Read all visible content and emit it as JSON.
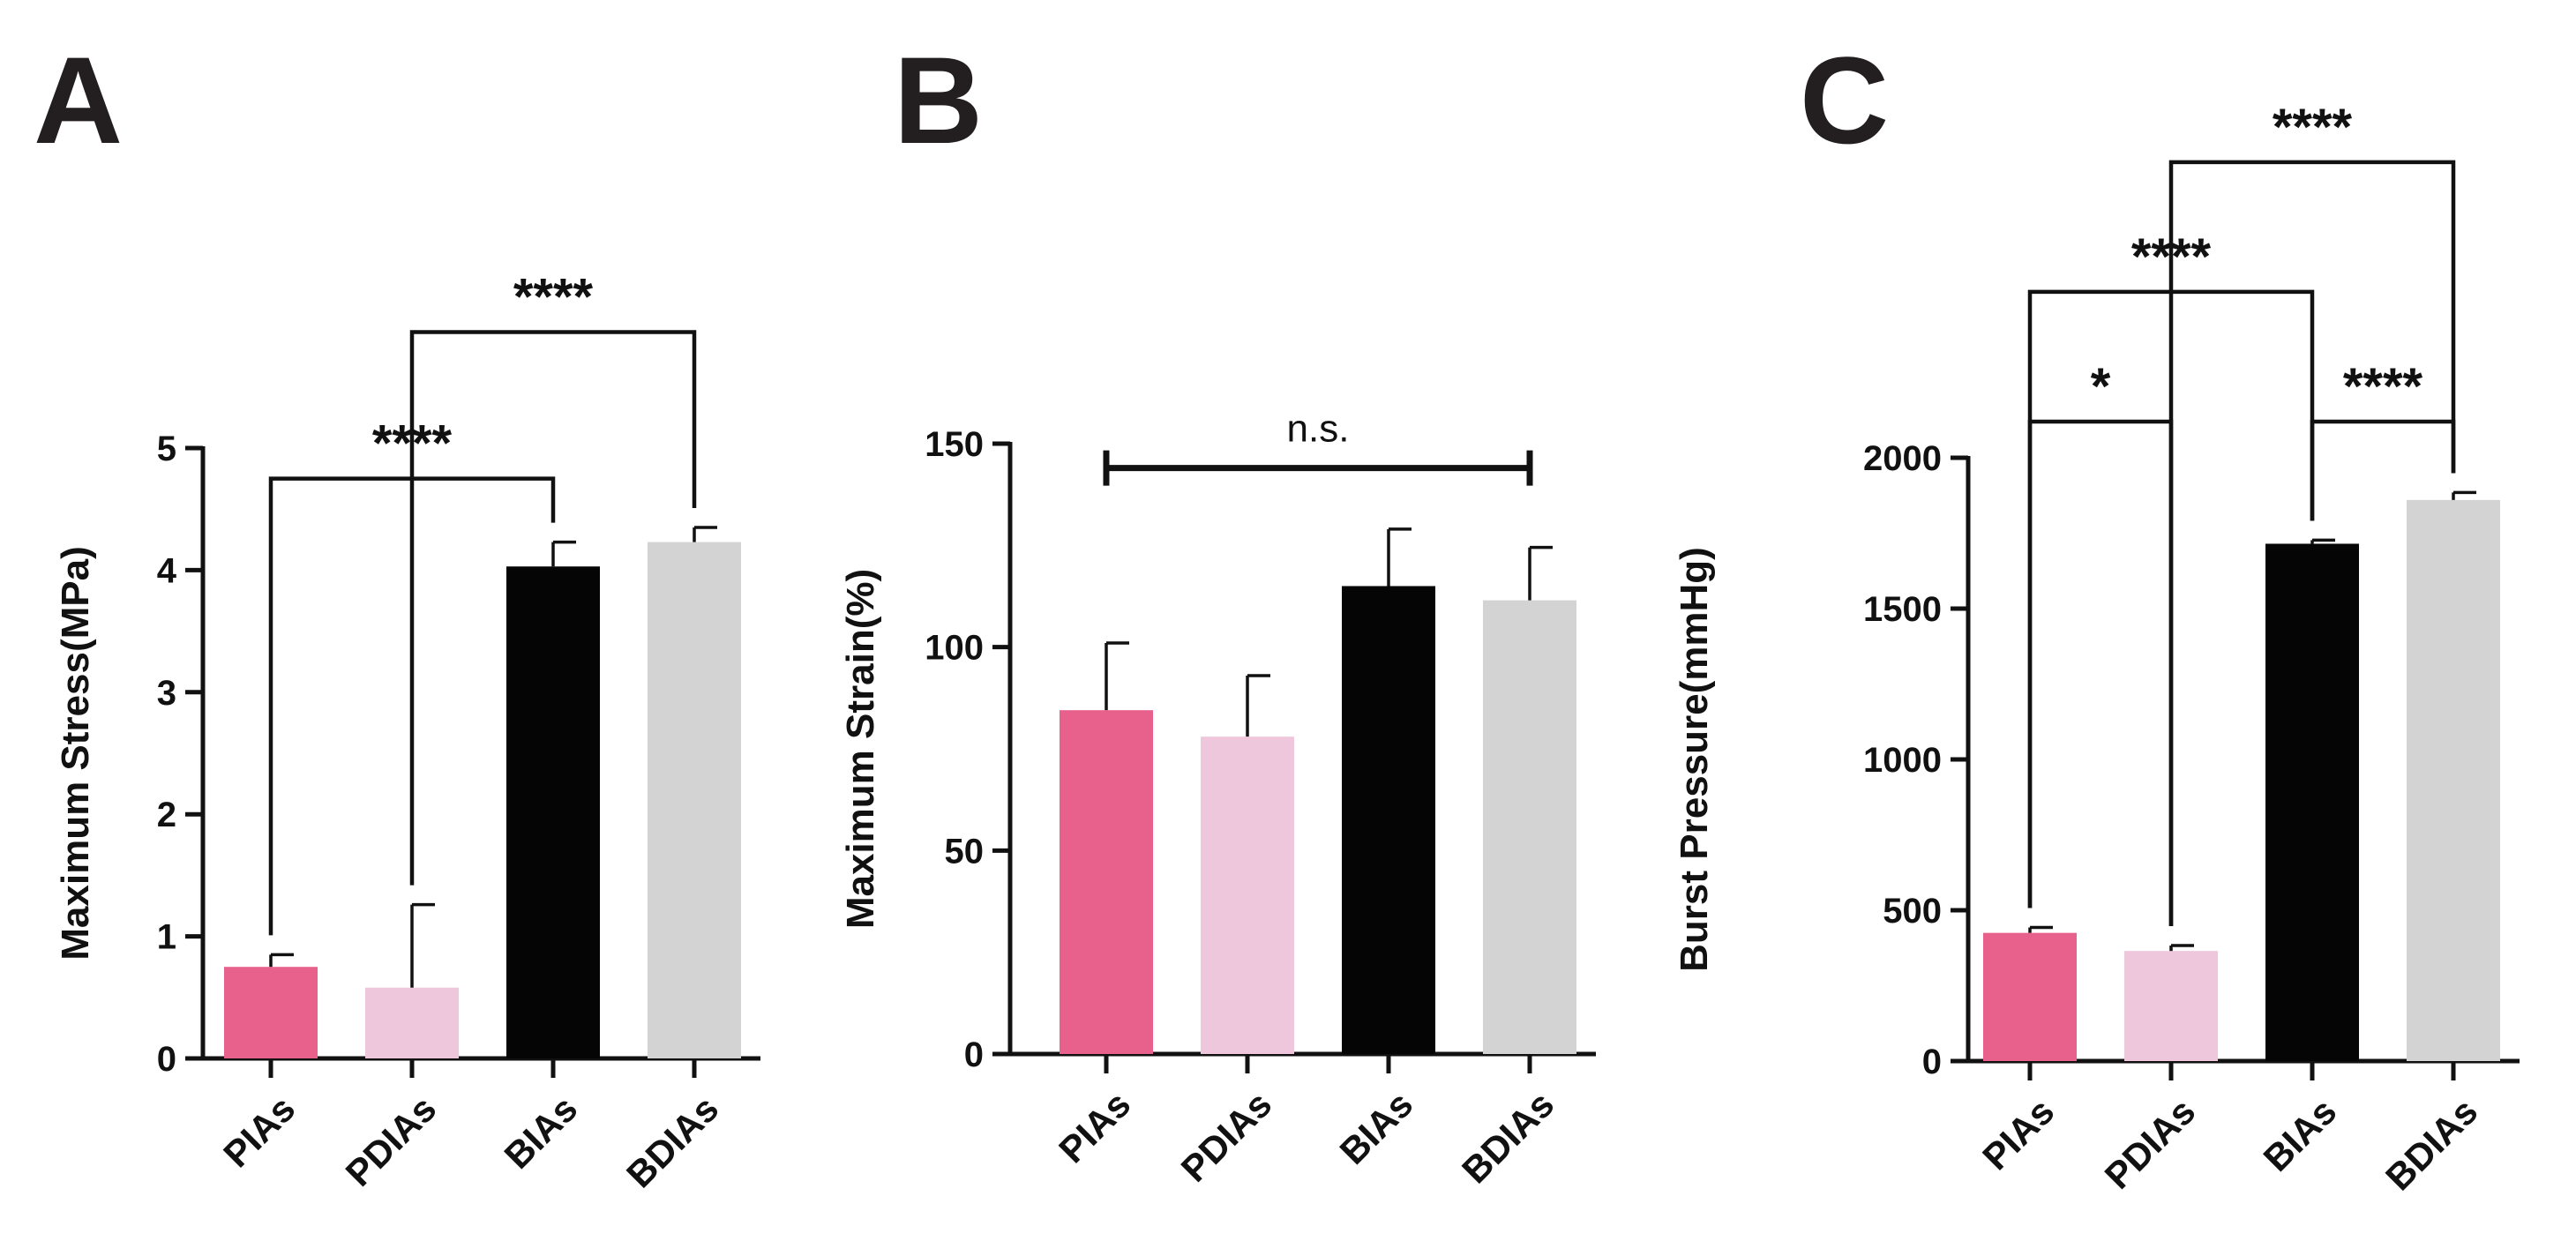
{
  "colors": {
    "PIAs": "#e8618c",
    "PDIAs": "#efc7dc",
    "BIAs": "#050505",
    "BDIAs": "#d3d3d3"
  },
  "chart_data": [
    {
      "type": "bar",
      "panel": "A",
      "categories": [
        "PIAs",
        "PDIAs",
        "BIAs",
        "BDIAs"
      ],
      "values": [
        0.75,
        0.58,
        4.03,
        4.23
      ],
      "errors": [
        0.1,
        0.68,
        0.2,
        0.12
      ],
      "ylabel": "Maximum Stress(MPa)",
      "ylim": [
        0,
        5
      ],
      "yticks": [
        0,
        1,
        2,
        3,
        4,
        5
      ],
      "yticklabels": [
        "0",
        "1",
        "2",
        "3",
        "4",
        "5"
      ],
      "significance": [
        {
          "from": 0,
          "to": 2,
          "label": "****",
          "level": 4.75
        },
        {
          "from": 1,
          "to": 3,
          "label": "****",
          "level": 5.95
        }
      ]
    },
    {
      "type": "bar",
      "panel": "B",
      "categories": [
        "PIAs",
        "PDIAs",
        "BIAs",
        "BDIAs"
      ],
      "values": [
        84.5,
        78,
        115,
        111.5
      ],
      "errors": [
        16.5,
        15,
        14,
        13
      ],
      "ylabel": "Maximum Strain(%)",
      "ylim": [
        0,
        150
      ],
      "yticks": [
        0,
        50,
        100,
        150
      ],
      "yticklabels": [
        "0",
        "50",
        "100",
        "150"
      ],
      "significance": [
        {
          "from": 0,
          "to": 3,
          "label": "n.s.",
          "level": 144,
          "style": "capped"
        }
      ]
    },
    {
      "type": "bar",
      "panel": "C",
      "categories": [
        "PIAs",
        "PDIAs",
        "BIAs",
        "BDIAs"
      ],
      "values": [
        425,
        365,
        1715,
        1860
      ],
      "errors": [
        18,
        18,
        12,
        25
      ],
      "ylabel": "Burst Pressure(mmHg)",
      "ylim": [
        0,
        2000
      ],
      "yticks": [
        0,
        500,
        1000,
        1500,
        2000
      ],
      "yticklabels": [
        "0",
        "500",
        "1000",
        "1500",
        "2000"
      ],
      "significance": [
        {
          "from": 0,
          "to": 1,
          "label": "*",
          "level": 2120
        },
        {
          "from": 2,
          "to": 3,
          "label": "****",
          "level": 2120
        },
        {
          "from": 0,
          "to": 2,
          "label": "****",
          "level": 2550
        },
        {
          "from": 1,
          "to": 3,
          "label": "****",
          "level": 2980
        }
      ]
    }
  ]
}
